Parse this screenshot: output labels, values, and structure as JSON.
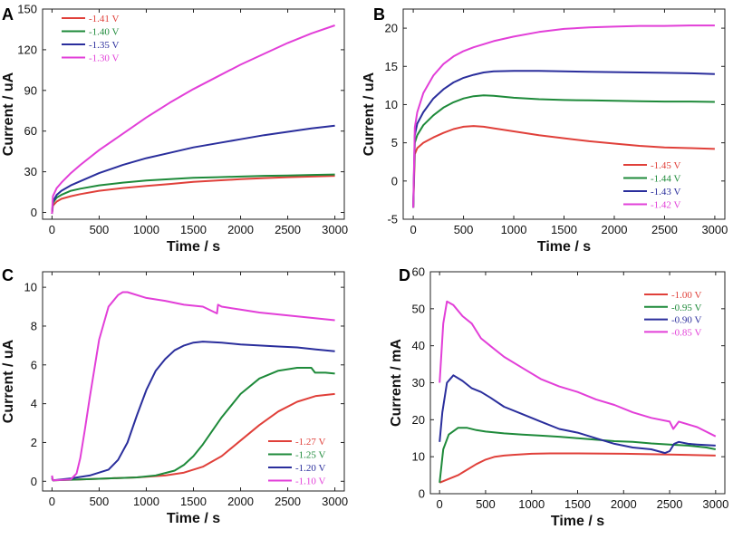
{
  "chart_data": [
    {
      "panel": "A",
      "type": "line",
      "xlabel": "Time / s",
      "ylabel": "Current / uA",
      "xlim": [
        -100,
        3100
      ],
      "ylim": [
        -5,
        150
      ],
      "xticks": [
        0,
        500,
        1000,
        1500,
        2000,
        2500,
        3000
      ],
      "yticks": [
        0,
        30,
        60,
        90,
        120,
        150
      ],
      "legend_position": "top-left",
      "series": [
        {
          "name": "-1.41 V",
          "color": "#e0403a",
          "x": [
            0,
            10,
            50,
            100,
            200,
            300,
            500,
            750,
            1000,
            1250,
            1500,
            1750,
            2000,
            2250,
            2500,
            2750,
            3000
          ],
          "y": [
            -1,
            5,
            8,
            10,
            12,
            13.5,
            16,
            18,
            19.5,
            21,
            22.5,
            23.5,
            24.5,
            25.3,
            26,
            26.5,
            27
          ]
        },
        {
          "name": "-1.40 V",
          "color": "#1e8a3a",
          "x": [
            0,
            10,
            50,
            100,
            200,
            300,
            500,
            750,
            1000,
            1250,
            1500,
            1750,
            2000,
            2250,
            2500,
            2750,
            3000
          ],
          "y": [
            -1,
            7,
            11,
            13,
            16,
            17.5,
            20,
            22,
            23.5,
            24.5,
            25.5,
            26,
            26.5,
            27,
            27.3,
            27.7,
            28
          ]
        },
        {
          "name": "-1.35 V",
          "color": "#2a2e9c",
          "x": [
            0,
            10,
            50,
            100,
            200,
            300,
            500,
            750,
            1000,
            1250,
            1500,
            1750,
            2000,
            2250,
            2500,
            2750,
            3000
          ],
          "y": [
            -1,
            8,
            13,
            16,
            20,
            23,
            29,
            35,
            40,
            44,
            48,
            51,
            54,
            57,
            59.5,
            62,
            64
          ]
        },
        {
          "name": "-1.30 V",
          "color": "#e23fd8",
          "x": [
            0,
            10,
            50,
            100,
            200,
            300,
            500,
            750,
            1000,
            1250,
            1500,
            1750,
            2000,
            2250,
            2500,
            2750,
            3000
          ],
          "y": [
            -1,
            12,
            18,
            22,
            29,
            35,
            46,
            58,
            70,
            81,
            91,
            100,
            109,
            117,
            125,
            132,
            138
          ]
        }
      ]
    },
    {
      "panel": "B",
      "type": "line",
      "xlabel": "Time / s",
      "ylabel": "Current / uA",
      "xlim": [
        -100,
        3100
      ],
      "ylim": [
        -5,
        22.5
      ],
      "xticks": [
        0,
        500,
        1000,
        1500,
        2000,
        2500,
        3000
      ],
      "yticks": [
        -5,
        0,
        5,
        10,
        15,
        20
      ],
      "legend_position": "bottom-right",
      "series": [
        {
          "name": "-1.45 V",
          "color": "#e0403a",
          "x": [
            0,
            15,
            40,
            100,
            200,
            300,
            400,
            500,
            600,
            700,
            800,
            1000,
            1250,
            1500,
            1750,
            2000,
            2250,
            2500,
            2750,
            3000
          ],
          "y": [
            -3.5,
            3.5,
            4.3,
            5,
            5.7,
            6.3,
            6.8,
            7.1,
            7.2,
            7.1,
            6.9,
            6.5,
            6,
            5.6,
            5.2,
            4.9,
            4.6,
            4.4,
            4.3,
            4.2
          ]
        },
        {
          "name": "-1.44 V",
          "color": "#1e8a3a",
          "x": [
            0,
            15,
            40,
            100,
            200,
            300,
            400,
            500,
            600,
            700,
            800,
            1000,
            1250,
            1500,
            1750,
            2000,
            2250,
            2500,
            2750,
            3000
          ],
          "y": [
            -3.5,
            5,
            6,
            7.3,
            8.6,
            9.6,
            10.3,
            10.8,
            11.1,
            11.2,
            11.15,
            10.9,
            10.7,
            10.6,
            10.55,
            10.5,
            10.45,
            10.4,
            10.4,
            10.35
          ]
        },
        {
          "name": "-1.43 V",
          "color": "#2a2e9c",
          "x": [
            0,
            15,
            40,
            100,
            200,
            300,
            400,
            500,
            600,
            700,
            800,
            1000,
            1250,
            1500,
            1750,
            2000,
            2250,
            2500,
            2750,
            3000
          ],
          "y": [
            -3.5,
            6,
            7.5,
            9,
            10.8,
            12,
            12.9,
            13.5,
            13.9,
            14.2,
            14.35,
            14.4,
            14.4,
            14.35,
            14.3,
            14.25,
            14.2,
            14.15,
            14.1,
            14
          ]
        },
        {
          "name": "-1.42 V",
          "color": "#e23fd8",
          "x": [
            0,
            15,
            40,
            100,
            200,
            300,
            400,
            500,
            600,
            700,
            800,
            1000,
            1250,
            1500,
            1750,
            2000,
            2250,
            2500,
            2750,
            3000
          ],
          "y": [
            -3.5,
            7,
            9,
            11.5,
            13.8,
            15.3,
            16.3,
            17,
            17.5,
            17.9,
            18.3,
            18.9,
            19.5,
            19.9,
            20.1,
            20.2,
            20.3,
            20.3,
            20.35,
            20.35
          ]
        }
      ]
    },
    {
      "panel": "C",
      "type": "line",
      "xlabel": "Time / s",
      "ylabel": "Current / uA",
      "xlim": [
        -100,
        3100
      ],
      "ylim": [
        -0.5,
        10.8
      ],
      "xticks": [
        0,
        500,
        1000,
        1500,
        2000,
        2500,
        3000
      ],
      "yticks": [
        0,
        2,
        4,
        6,
        8,
        10
      ],
      "legend_position": "bottom-right",
      "series": [
        {
          "name": "-1.27 V",
          "color": "#e0403a",
          "x": [
            0,
            10,
            300,
            600,
            900,
            1200,
            1400,
            1600,
            1800,
            2000,
            2200,
            2400,
            2600,
            2800,
            3000
          ],
          "y": [
            0.15,
            0.05,
            0.1,
            0.15,
            0.2,
            0.3,
            0.45,
            0.75,
            1.3,
            2.1,
            2.9,
            3.6,
            4.1,
            4.4,
            4.5
          ]
        },
        {
          "name": "-1.25 V",
          "color": "#1e8a3a",
          "x": [
            0,
            10,
            300,
            600,
            900,
            1100,
            1300,
            1400,
            1500,
            1600,
            1800,
            2000,
            2200,
            2400,
            2600,
            2750,
            2790,
            2900,
            3000
          ],
          "y": [
            0.15,
            0.05,
            0.1,
            0.15,
            0.2,
            0.3,
            0.55,
            0.85,
            1.3,
            1.9,
            3.3,
            4.5,
            5.3,
            5.7,
            5.85,
            5.85,
            5.6,
            5.6,
            5.55
          ]
        },
        {
          "name": "-1.20 V",
          "color": "#2a2e9c",
          "x": [
            0,
            10,
            200,
            400,
            600,
            700,
            800,
            900,
            1000,
            1100,
            1200,
            1300,
            1400,
            1500,
            1600,
            1800,
            2000,
            2200,
            2400,
            2600,
            2800,
            3000
          ],
          "y": [
            0.25,
            0.05,
            0.15,
            0.3,
            0.6,
            1.1,
            2,
            3.4,
            4.7,
            5.7,
            6.3,
            6.75,
            7.0,
            7.15,
            7.2,
            7.15,
            7.05,
            7.0,
            6.95,
            6.9,
            6.8,
            6.7
          ]
        },
        {
          "name": "-1.10 V",
          "color": "#e23fd8",
          "x": [
            0,
            10,
            200,
            260,
            300,
            350,
            400,
            450,
            500,
            600,
            700,
            750,
            800,
            1000,
            1200,
            1400,
            1600,
            1750,
            1760,
            1800,
            2000,
            2200,
            2400,
            2600,
            2800,
            3000
          ],
          "y": [
            0.3,
            0.05,
            0.1,
            0.4,
            1.2,
            2.7,
            4.3,
            5.8,
            7.3,
            9.0,
            9.6,
            9.75,
            9.75,
            9.45,
            9.3,
            9.1,
            9.0,
            8.65,
            9.1,
            9.0,
            8.85,
            8.7,
            8.6,
            8.5,
            8.4,
            8.3
          ]
        }
      ]
    },
    {
      "panel": "D",
      "type": "line",
      "xlabel": "Time / s",
      "ylabel": "Current / mA",
      "xlim": [
        -100,
        3100
      ],
      "ylim": [
        0,
        60
      ],
      "xticks": [
        0,
        500,
        1000,
        1500,
        2000,
        2500,
        3000
      ],
      "yticks": [
        0,
        10,
        20,
        30,
        40,
        50,
        60
      ],
      "legend_position": "top-right",
      "series": [
        {
          "name": "-1.00 V",
          "color": "#e0403a",
          "x": [
            0,
            100,
            200,
            300,
            400,
            500,
            600,
            700,
            800,
            1000,
            1200,
            1500,
            2000,
            2500,
            3000
          ],
          "y": [
            3,
            4,
            5,
            6.5,
            8,
            9.2,
            10,
            10.3,
            10.5,
            10.8,
            10.9,
            10.9,
            10.8,
            10.6,
            10.3
          ]
        },
        {
          "name": "-0.95 V",
          "color": "#1e8a3a",
          "x": [
            0,
            40,
            100,
            200,
            300,
            400,
            500,
            700,
            900,
            1100,
            1300,
            1500,
            1700,
            1900,
            2100,
            2300,
            2500,
            2700,
            2900,
            3000
          ],
          "y": [
            3,
            12,
            16,
            17.8,
            17.8,
            17.2,
            16.8,
            16.3,
            16,
            15.7,
            15.4,
            15,
            14.6,
            14.2,
            14,
            13.6,
            13.3,
            13,
            12.5,
            12
          ]
        },
        {
          "name": "-0.90 V",
          "color": "#2a2e9c",
          "x": [
            0,
            30,
            80,
            150,
            250,
            350,
            450,
            550,
            700,
            900,
            1100,
            1300,
            1500,
            1700,
            1900,
            2100,
            2300,
            2450,
            2500,
            2550,
            2600,
            2700,
            2800,
            3000
          ],
          "y": [
            14,
            22,
            30,
            32,
            30.5,
            28.5,
            27.5,
            26,
            23.5,
            21.5,
            19.5,
            17.5,
            16.5,
            15,
            13.5,
            12.5,
            12,
            11,
            11.5,
            13.5,
            14,
            13.5,
            13.3,
            13
          ]
        },
        {
          "name": "-0.85 V",
          "color": "#e23fd8",
          "x": [
            0,
            40,
            80,
            150,
            250,
            350,
            450,
            550,
            700,
            900,
            1100,
            1300,
            1500,
            1700,
            1900,
            2100,
            2300,
            2500,
            2540,
            2600,
            2800,
            3000
          ],
          "y": [
            30,
            46,
            52,
            51,
            48,
            46,
            42,
            40,
            37,
            34,
            31,
            29,
            27.5,
            25.5,
            24,
            22,
            20.5,
            19.5,
            17.5,
            19.5,
            18,
            15.5
          ]
        }
      ]
    }
  ]
}
